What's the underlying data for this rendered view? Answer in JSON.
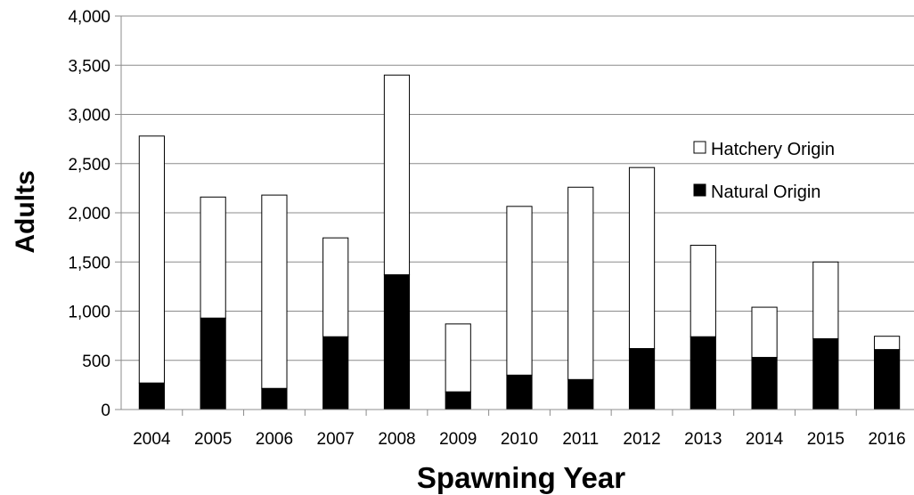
{
  "chart_data": {
    "type": "bar",
    "stacked": true,
    "categories": [
      "2004",
      "2005",
      "2006",
      "2007",
      "2008",
      "2009",
      "2010",
      "2011",
      "2012",
      "2013",
      "2014",
      "2015",
      "2016"
    ],
    "series": [
      {
        "name": "Natural Origin",
        "color": "#000000",
        "values": [
          270,
          930,
          215,
          740,
          1370,
          180,
          350,
          305,
          620,
          740,
          530,
          720,
          610
        ]
      },
      {
        "name": "Hatchery Origin",
        "color": "#ffffff",
        "values": [
          2510,
          1230,
          1965,
          1005,
          2030,
          690,
          1715,
          1955,
          1840,
          930,
          510,
          780,
          135
        ]
      }
    ],
    "xlabel": "Spawning Year",
    "ylabel": "Adults",
    "ylim": [
      0,
      4000
    ],
    "yticks": [
      0,
      500,
      1000,
      1500,
      2000,
      2500,
      3000,
      3500,
      4000
    ],
    "ytick_labels": [
      "0",
      "500",
      "1,000",
      "1,500",
      "2,000",
      "2,500",
      "3,000",
      "3,500",
      "4,000"
    ],
    "grid": true,
    "legend": {
      "placement": "upper-right",
      "entries": [
        {
          "label": "Hatchery Origin",
          "color": "#ffffff"
        },
        {
          "label": "Natural Origin",
          "color": "#000000"
        }
      ]
    }
  }
}
